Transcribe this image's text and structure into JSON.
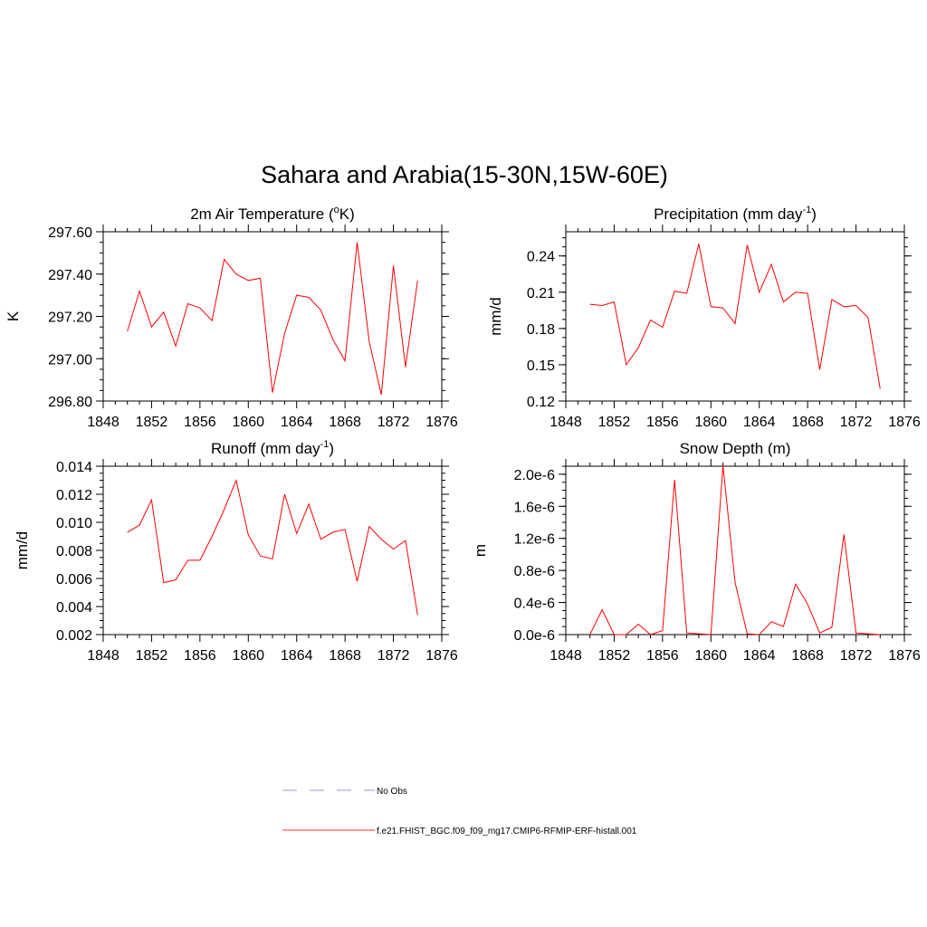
{
  "figure": {
    "title": "Sahara and Arabia(15-30N,15W-60E)"
  },
  "legend": [
    {
      "label": "No Obs",
      "color": "#9999dd",
      "style": "dashed"
    },
    {
      "label": "f.e21.FHIST_BGC.f09_f09_mg17.CMIP6-RFMIP-ERF-histall.001",
      "color": "#ff3333",
      "style": "solid"
    }
  ],
  "chart_data": [
    {
      "id": "tas",
      "type": "line",
      "title": "2m Air Temperature (",
      "title_sup": "o",
      "title_after": "K)",
      "ylabel": "K",
      "xlabel": "",
      "xlim": [
        1848,
        1876
      ],
      "ylim": [
        296.8,
        297.6
      ],
      "xticks": [
        1848,
        1852,
        1856,
        1860,
        1864,
        1868,
        1872,
        1876
      ],
      "yticks": [
        296.8,
        297.0,
        297.2,
        297.4,
        297.6
      ],
      "ytick_labels": [
        "296.80",
        "297.00",
        "297.20",
        "297.40",
        "297.60"
      ],
      "color": "#ff0000",
      "x": [
        1850,
        1851,
        1852,
        1853,
        1854,
        1855,
        1856,
        1857,
        1858,
        1859,
        1860,
        1861,
        1862,
        1863,
        1864,
        1865,
        1866,
        1867,
        1868,
        1869,
        1870,
        1871,
        1872,
        1873,
        1874
      ],
      "values": [
        297.13,
        297.32,
        297.15,
        297.22,
        297.06,
        297.26,
        297.24,
        297.18,
        297.47,
        297.4,
        297.37,
        297.38,
        296.84,
        297.12,
        297.3,
        297.29,
        297.23,
        297.09,
        296.99,
        297.55,
        297.08,
        296.83,
        297.44,
        296.96,
        297.37
      ]
    },
    {
      "id": "pr",
      "type": "line",
      "title": "Precipitation (mm day",
      "title_sup": "-1",
      "title_after": ")",
      "ylabel": "mm/d",
      "xlabel": "",
      "xlim": [
        1848,
        1876
      ],
      "ylim": [
        0.12,
        0.26
      ],
      "xticks": [
        1848,
        1852,
        1856,
        1860,
        1864,
        1868,
        1872,
        1876
      ],
      "yticks": [
        0.12,
        0.15,
        0.18,
        0.21,
        0.24
      ],
      "ytick_labels": [
        "0.12",
        "0.15",
        "0.18",
        "0.21",
        "0.24"
      ],
      "color": "#ff0000",
      "x": [
        1850,
        1851,
        1852,
        1853,
        1854,
        1855,
        1856,
        1857,
        1858,
        1859,
        1860,
        1861,
        1862,
        1863,
        1864,
        1865,
        1866,
        1867,
        1868,
        1869,
        1870,
        1871,
        1872,
        1873,
        1874
      ],
      "values": [
        0.2,
        0.199,
        0.202,
        0.15,
        0.164,
        0.187,
        0.181,
        0.211,
        0.209,
        0.25,
        0.198,
        0.197,
        0.184,
        0.249,
        0.21,
        0.233,
        0.202,
        0.21,
        0.209,
        0.146,
        0.204,
        0.198,
        0.199,
        0.189,
        0.13
      ]
    },
    {
      "id": "runoff",
      "type": "line",
      "title": "Runoff (mm day",
      "title_sup": "-1",
      "title_after": ")",
      "ylabel": "mm/d",
      "xlabel": "",
      "xlim": [
        1848,
        1876
      ],
      "ylim": [
        0.002,
        0.014
      ],
      "xticks": [
        1848,
        1852,
        1856,
        1860,
        1864,
        1868,
        1872,
        1876
      ],
      "yticks": [
        0.002,
        0.004,
        0.006,
        0.008,
        0.01,
        0.012,
        0.014
      ],
      "ytick_labels": [
        "0.002",
        "0.004",
        "0.006",
        "0.008",
        "0.010",
        "0.012",
        "0.014"
      ],
      "color": "#ff0000",
      "x": [
        1850,
        1851,
        1852,
        1853,
        1854,
        1855,
        1856,
        1857,
        1858,
        1859,
        1860,
        1861,
        1862,
        1863,
        1864,
        1865,
        1866,
        1867,
        1868,
        1869,
        1870,
        1871,
        1872,
        1873,
        1874
      ],
      "values": [
        0.0093,
        0.0098,
        0.0116,
        0.0057,
        0.0059,
        0.0073,
        0.0073,
        0.009,
        0.0109,
        0.013,
        0.0091,
        0.0076,
        0.0074,
        0.012,
        0.0092,
        0.0113,
        0.0088,
        0.0093,
        0.0095,
        0.0058,
        0.0097,
        0.0088,
        0.0081,
        0.0087,
        0.0034
      ]
    },
    {
      "id": "snowd",
      "type": "line",
      "title": "Snow Depth (m)",
      "title_sup": "",
      "title_after": "",
      "ylabel": "m",
      "xlabel": "",
      "xlim": [
        1848,
        1876
      ],
      "ylim": [
        0,
        2.1e-06
      ],
      "xticks": [
        1848,
        1852,
        1856,
        1860,
        1864,
        1868,
        1872,
        1876
      ],
      "yticks": [
        0,
        4e-07,
        8e-07,
        1.2e-06,
        1.6e-06,
        2e-06
      ],
      "ytick_labels": [
        "0.0e-6",
        "0.4e-6",
        "0.8e-6",
        "1.2e-6",
        "1.6e-6",
        "2.0e-6"
      ],
      "color": "#ff0000",
      "x": [
        1850,
        1851,
        1852,
        1853,
        1854,
        1855,
        1856,
        1857,
        1858,
        1859,
        1860,
        1861,
        1862,
        1863,
        1864,
        1865,
        1866,
        1867,
        1868,
        1869,
        1870,
        1871,
        1872,
        1873,
        1874
      ],
      "values": [
        0,
        3.1e-07,
        0,
        0,
        1.3e-07,
        0,
        5e-08,
        1.93e-06,
        2e-08,
        1e-08,
        0,
        2.11e-06,
        6.5e-07,
        1e-08,
        0,
        1.6e-07,
        1e-07,
        6.3e-07,
        3.8e-07,
        2e-08,
        9e-08,
        1.25e-06,
        2e-08,
        1e-08,
        0
      ]
    }
  ]
}
